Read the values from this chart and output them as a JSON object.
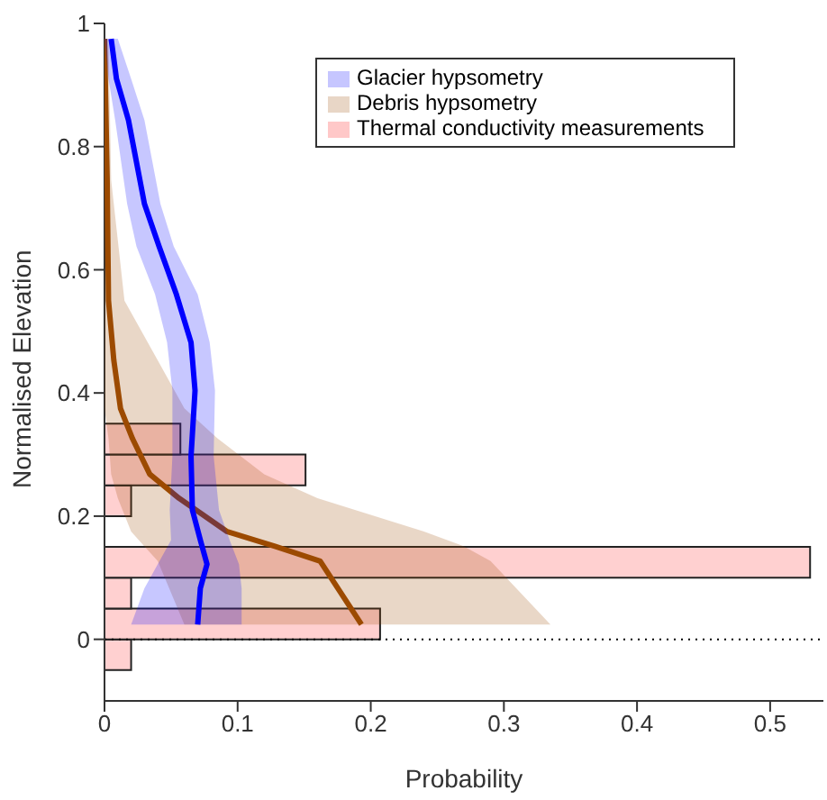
{
  "chart_data": {
    "type": "line",
    "orientation": "horizontal",
    "xlabel": "Probability",
    "ylabel": "Normalised Elevation",
    "xlim": [
      0,
      0.54
    ],
    "xticks": [
      0,
      0.1,
      0.2,
      0.3,
      0.4,
      0.5
    ],
    "ylim": [
      -0.1,
      1
    ],
    "yticks": [
      0,
      0.2,
      0.4,
      0.6,
      0.8,
      1
    ],
    "legend": "top right",
    "grid": false,
    "series": [
      {
        "type": "histogram",
        "name": "Thermal conductivity measurements",
        "color": "#ffc8c8",
        "bins": [
          -0.05,
          0,
          0.05,
          0.1,
          0.15,
          0.2,
          0.25,
          0.3,
          0.35
        ],
        "values": [
          0.02,
          0.207,
          0.02,
          0.53,
          0,
          0.02,
          0.151,
          0.057
        ]
      },
      {
        "name": "Debris hypsometry",
        "color": "#9c4a00",
        "x": [
          0.975,
          0.746,
          0.55,
          0.453,
          0.375,
          0.326,
          0.268,
          0.229,
          0.175,
          0.151,
          0.127,
          0.024
        ],
        "values": [
          0,
          0.002,
          0.003,
          0.007,
          0.012,
          0.021,
          0.034,
          0.056,
          0.092,
          0.128,
          0.162,
          0.193
        ],
        "lower": [
          0,
          0,
          0,
          0,
          0,
          0.003,
          0.005,
          0.01,
          0.02,
          0.03,
          0.04,
          0.06
        ],
        "upper": [
          0.003,
          0.005,
          0.015,
          0.04,
          0.06,
          0.085,
          0.12,
          0.16,
          0.24,
          0.27,
          0.29,
          0.335
        ]
      },
      {
        "name": "Glacier hypsometry",
        "color": "#0000ff",
        "x": [
          0.975,
          0.91,
          0.843,
          0.707,
          0.638,
          0.56,
          0.482,
          0.404,
          0.297,
          0.21,
          0.161,
          0.122,
          0.083,
          0.024
        ],
        "values": [
          0.005,
          0.009,
          0.018,
          0.03,
          0.041,
          0.054,
          0.065,
          0.068,
          0.065,
          0.066,
          0.072,
          0.077,
          0.072,
          0.07
        ],
        "lower": [
          0,
          0.003,
          0.008,
          0.017,
          0.024,
          0.038,
          0.047,
          0.051,
          0.051,
          0.049,
          0.05,
          0.04,
          0.03,
          0.02
        ],
        "upper": [
          0.01,
          0.02,
          0.03,
          0.042,
          0.052,
          0.07,
          0.079,
          0.083,
          0.082,
          0.086,
          0.094,
          0.101,
          0.103,
          0.103
        ]
      }
    ],
    "ref_lines": [
      {
        "axis": "y",
        "value": 0,
        "color": "#000000",
        "line_style": "dotted"
      }
    ]
  }
}
